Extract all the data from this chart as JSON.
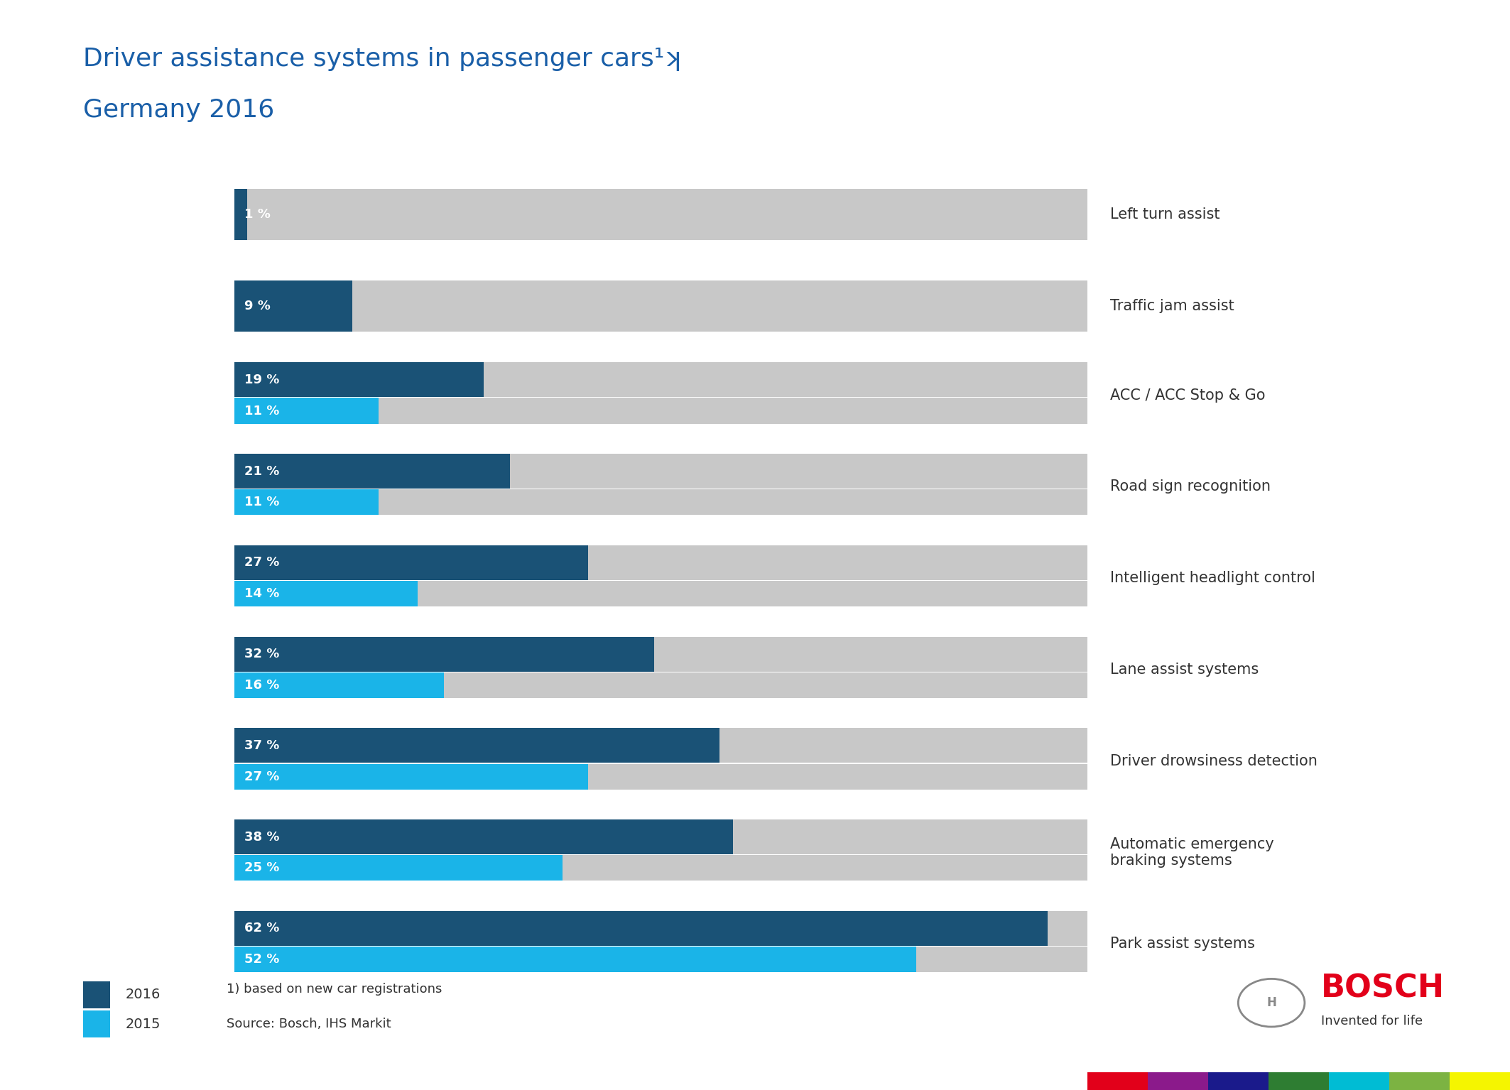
{
  "title_line1": "Driver assistance systems in passenger cars¹ʞ",
  "title_line2": "Germany 2016",
  "title_color": "#1a5fa8",
  "background_color": "#ffffff",
  "bar_bg_color": "#c8c8c8",
  "color_2016": "#1a5276",
  "color_2015": "#1ab4e8",
  "categories": [
    "Left turn assist",
    "Traffic jam assist",
    "ACC / ACC Stop & Go",
    "Road sign recognition",
    "Intelligent headlight control",
    "Lane assist systems",
    "Driver drowsiness detection",
    "Automatic emergency\nbraking systems",
    "Park assist systems"
  ],
  "values_2016": [
    1,
    9,
    19,
    21,
    27,
    32,
    37,
    38,
    62
  ],
  "values_2015": [
    0,
    0,
    11,
    11,
    14,
    16,
    27,
    25,
    52
  ],
  "has_2015": [
    false,
    false,
    true,
    true,
    true,
    true,
    true,
    true,
    true
  ],
  "max_val": 65,
  "legend_2016": "2016",
  "legend_2015": "2015",
  "footnote_line1": "1) based on new car registrations",
  "footnote_line2": "Source: Bosch, IHS Markit",
  "bosch_text": "BOSCH",
  "bosch_subtitle": "Invented for life",
  "bosch_color": "#e2001a",
  "label_color": "#333333",
  "bottom_colors": [
    "#e2001a",
    "#8b1a8b",
    "#1a1a8b",
    "#2e7d32",
    "#00bcd4",
    "#7cb342",
    "#f5f500"
  ]
}
